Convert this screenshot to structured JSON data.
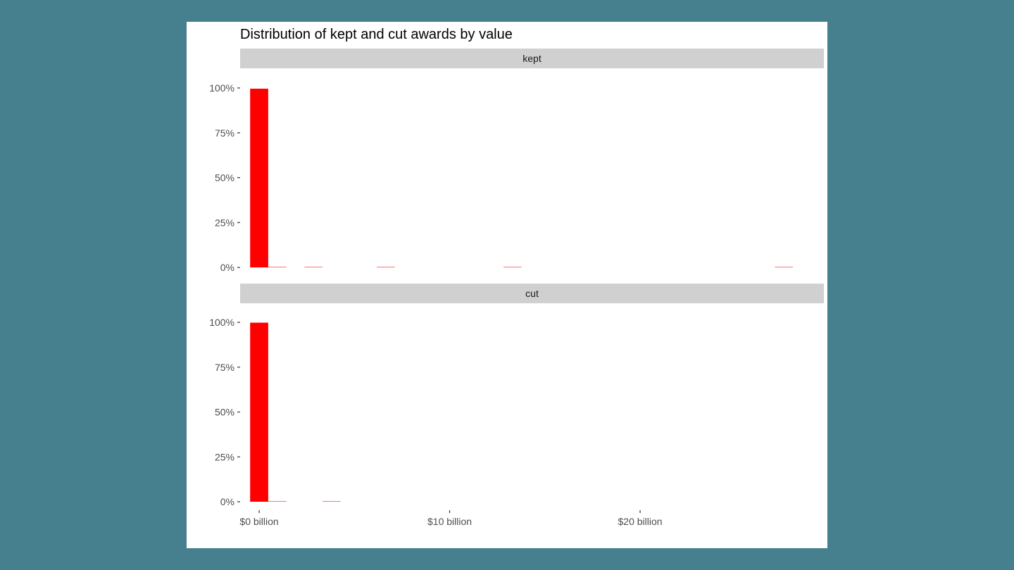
{
  "colors": {
    "background": "#46808e",
    "panel": "#ffffff",
    "strip": "#d0d0d0",
    "bar": "#ff0000",
    "axis_text": "#4d4d4d"
  },
  "chart_data": {
    "type": "bar",
    "title": "Distribution of kept and cut awards by value",
    "xlabel": "",
    "ylabel": "",
    "xlim": [
      -1,
      29.5
    ],
    "ylim": [
      0,
      1
    ],
    "x_ticks": [
      0,
      10,
      20
    ],
    "x_tick_labels": [
      "$0 billion",
      "$10 billion",
      "$20 billion"
    ],
    "y_ticks": [
      0,
      0.25,
      0.5,
      0.75,
      1
    ],
    "y_tick_labels": [
      "0%",
      "25%",
      "50%",
      "75%",
      "100%"
    ],
    "bin_width": 0.95,
    "grid": false,
    "legend": "none",
    "facets": [
      {
        "label": "kept",
        "bins": [
          {
            "x": 0,
            "value": 0.996
          },
          {
            "x": 0.95,
            "value": 0.003
          },
          {
            "x": 2.85,
            "value": 0.0005
          },
          {
            "x": 6.65,
            "value": 0.0005
          },
          {
            "x": 13.3,
            "value": 0.0005
          },
          {
            "x": 27.55,
            "value": 0.0005
          }
        ]
      },
      {
        "label": "cut",
        "bins": [
          {
            "x": 0,
            "value": 0.998
          },
          {
            "x": 0.95,
            "value": 0.0015
          },
          {
            "x": 3.8,
            "value": 0.0005
          }
        ]
      }
    ]
  }
}
